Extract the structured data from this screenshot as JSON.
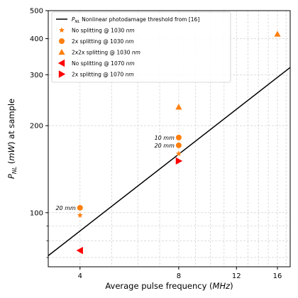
{
  "chart_data": {
    "type": "scatter",
    "xlabel": "Average pulse frequency (MHz)",
    "ylabel": "P_NL (mW) at sample",
    "x_scale": "log",
    "y_scale": "log",
    "xlim": [
      3.2,
      17.5
    ],
    "ylim": [
      65,
      500
    ],
    "x_ticks": [
      {
        "value": 4,
        "label": "4"
      },
      {
        "value": 8,
        "label": "8"
      },
      {
        "value": 12,
        "label": "12"
      },
      {
        "value": 16,
        "label": "16"
      }
    ],
    "y_ticks": [
      {
        "value": 100,
        "label": "100"
      },
      {
        "value": 200,
        "label": "200"
      },
      {
        "value": 300,
        "label": "300"
      },
      {
        "value": 400,
        "label": "400"
      },
      {
        "value": 500,
        "label": "500"
      }
    ],
    "grid": true,
    "legend_position": "top-left",
    "threshold_line": {
      "name": "P_NL Nonlinear photodamage threshold from [16]",
      "color": "#000000",
      "points": [
        [
          3.2,
          71
        ],
        [
          17.5,
          318
        ]
      ]
    },
    "series": [
      {
        "name": "No splitting @ 1030 nm",
        "marker": "star",
        "color": "#ff7f0e",
        "points": [
          [
            4,
            98
          ],
          [
            8,
            160
          ]
        ]
      },
      {
        "name": "2x splitting @ 1030 nm",
        "marker": "circle",
        "color": "#ff7f0e",
        "points": [
          [
            4,
            104
          ],
          [
            8,
            182
          ],
          [
            8,
            171
          ]
        ]
      },
      {
        "name": "2x2x splitting @ 1030 nm",
        "marker": "triangle-up",
        "color": "#ff7f0e",
        "points": [
          [
            8,
            232
          ],
          [
            16,
            415
          ]
        ]
      },
      {
        "name": "No splitting @ 1070 nm",
        "marker": "triangle-left",
        "color": "#ff0000",
        "points": [
          [
            4,
            74
          ]
        ]
      },
      {
        "name": "2x splitting @ 1070 nm",
        "marker": "triangle-right",
        "color": "#ff0000",
        "points": [
          [
            8,
            151
          ]
        ]
      }
    ],
    "annotations": [
      {
        "text": "10 mm",
        "x": 8,
        "y": 182,
        "anchor": "end"
      },
      {
        "text": "20 mm",
        "x": 8,
        "y": 171,
        "anchor": "end"
      },
      {
        "text": "20 mm",
        "x": 4,
        "y": 104,
        "anchor": "end"
      }
    ]
  }
}
